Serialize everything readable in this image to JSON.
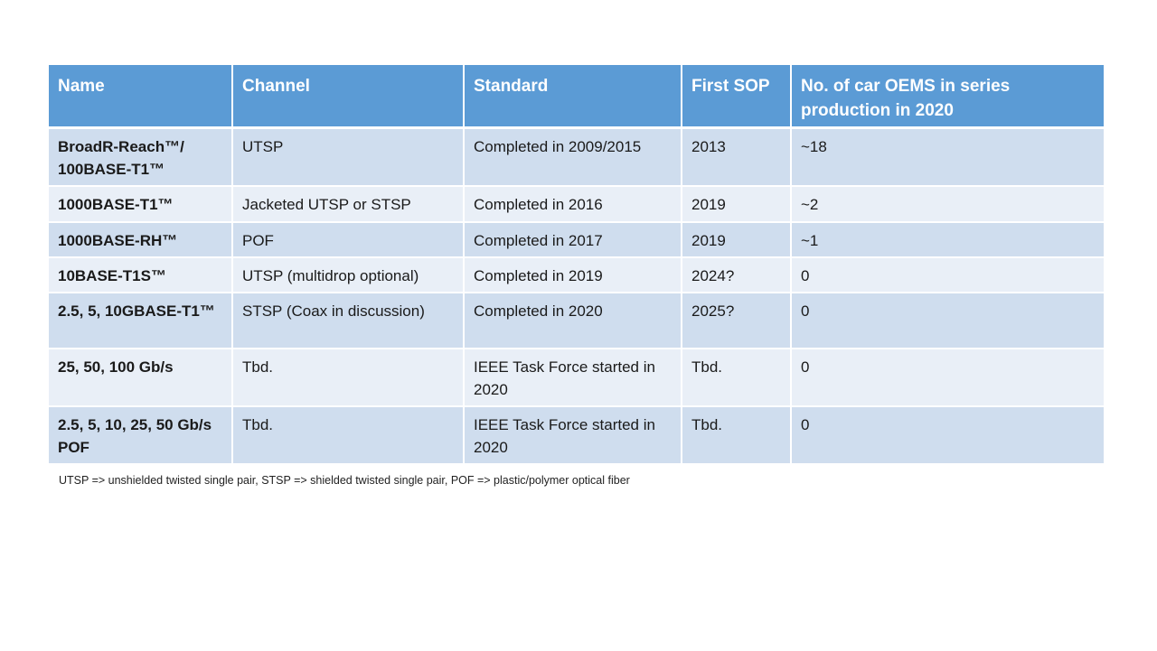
{
  "table": {
    "headers": [
      "Name",
      "Channel",
      "Standard",
      "First SOP",
      "No. of car OEMS in series production in 2020"
    ],
    "rows": [
      [
        "BroadR-Reach™/ 100BASE-T1™",
        "UTSP",
        "Completed in 2009/2015",
        "2013",
        "~18"
      ],
      [
        "1000BASE-T1™",
        "Jacketed UTSP or STSP",
        "Completed in 2016",
        "2019",
        "~2"
      ],
      [
        "1000BASE-RH™",
        "POF",
        "Completed in 2017",
        "2019",
        "~1"
      ],
      [
        "10BASE-T1S™",
        "UTSP (multidrop optional)",
        "Completed in 2019",
        "2024?",
        "0"
      ],
      [
        "2.5, 5, 10GBASE-T1™",
        "STSP (Coax in discussion)",
        "Completed in 2020",
        "2025?",
        "0"
      ],
      [
        "25, 50, 100 Gb/s",
        "Tbd.",
        "IEEE Task Force started in 2020",
        "Tbd.",
        "0"
      ],
      [
        "2.5, 5, 10, 25, 50 Gb/s POF",
        "Tbd.",
        "IEEE Task Force started in 2020",
        "Tbd.",
        "0"
      ]
    ]
  },
  "footnote": "UTSP => unshielded twisted single pair, STSP => shielded twisted single pair, POF => plastic/polymer optical fiber",
  "colors": {
    "header_bg": "#5b9bd5",
    "row_odd_bg": "#cfddee",
    "row_even_bg": "#e9eff7"
  }
}
